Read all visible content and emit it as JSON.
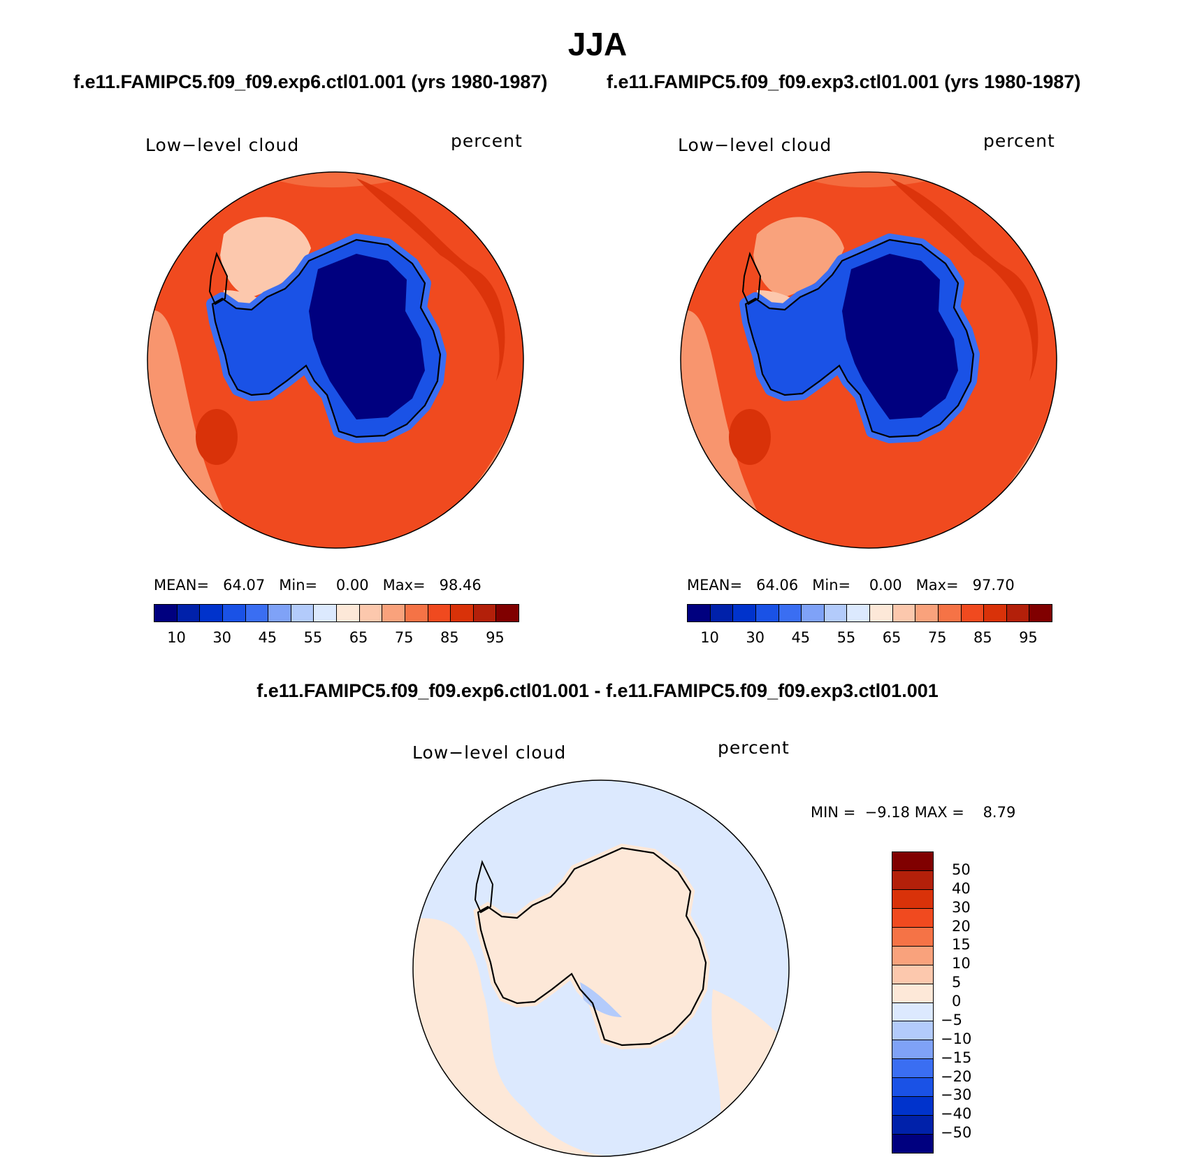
{
  "title": "JJA",
  "subtitles": {
    "left": "f.e11.FAMIPC5.f09_f09.exp6.ctl01.001 (yrs 1980-1987)",
    "right": "f.e11.FAMIPC5.f09_f09.exp3.ctl01.001 (yrs 1980-1987)",
    "diff": "f.e11.FAMIPC5.f09_f09.exp6.ctl01.001 - f.e11.FAMIPC5.f09_f09.exp3.ctl01.001"
  },
  "panels": [
    {
      "variable": "Low−level cloud",
      "units": "percent",
      "stats": {
        "mean_label": "MEAN=",
        "mean": "64.07",
        "min_label": "Min=",
        "min": "0.00",
        "max_label": "Max=",
        "max": "98.46"
      }
    },
    {
      "variable": "Low−level cloud",
      "units": "percent",
      "stats": {
        "mean_label": "MEAN=",
        "mean": "64.06",
        "min_label": "Min=",
        "min": "0.00",
        "max_label": "Max=",
        "max": "97.70"
      }
    },
    {
      "variable": "Low−level cloud",
      "units": "percent",
      "stats": {
        "min_label": "MIN =",
        "min": "−9.18",
        "max_label": "MAX =",
        "max": "8.79"
      }
    }
  ],
  "colorbar_main": {
    "colors": [
      "#00007f",
      "#0021aa",
      "#0033cc",
      "#1a52e6",
      "#3a6ef2",
      "#7fa2f7",
      "#b3cbfb",
      "#dce9fe",
      "#fde8d8",
      "#fcc8ad",
      "#f9a27c",
      "#f57346",
      "#f04a1f",
      "#d93209",
      "#b3200a",
      "#800000"
    ],
    "tick_labels": [
      "10",
      "30",
      "45",
      "55",
      "65",
      "75",
      "85",
      "95"
    ]
  },
  "colorbar_diff": {
    "colors": [
      "#800000",
      "#b3200a",
      "#d93209",
      "#f04a1f",
      "#f57346",
      "#f9a27c",
      "#fcc8ad",
      "#fde8d8",
      "#dce9fe",
      "#b3cbfb",
      "#7fa2f7",
      "#3a6ef2",
      "#1a52e6",
      "#0033cc",
      "#0021aa",
      "#00007f"
    ],
    "tick_labels": [
      "50",
      "40",
      "30",
      "20",
      "15",
      "10",
      "5",
      "0",
      "−5",
      "−10",
      "−15",
      "−20",
      "−30",
      "−40",
      "−50"
    ]
  },
  "map_colors": {
    "ocean_high": "#f04a1f",
    "ocean_mid": "#f57346",
    "ocean_light": "#f9a27c",
    "ocean_dark": "#d93209",
    "pale": "#fcc8ad",
    "ice_core": "#00007f",
    "ice_edge": "#1a52e6",
    "ice_rim": "#3a6ef2",
    "diff_pos": "#fde8d8",
    "diff_neg": "#dce9fe",
    "diff_neg2": "#b3cbfb"
  }
}
